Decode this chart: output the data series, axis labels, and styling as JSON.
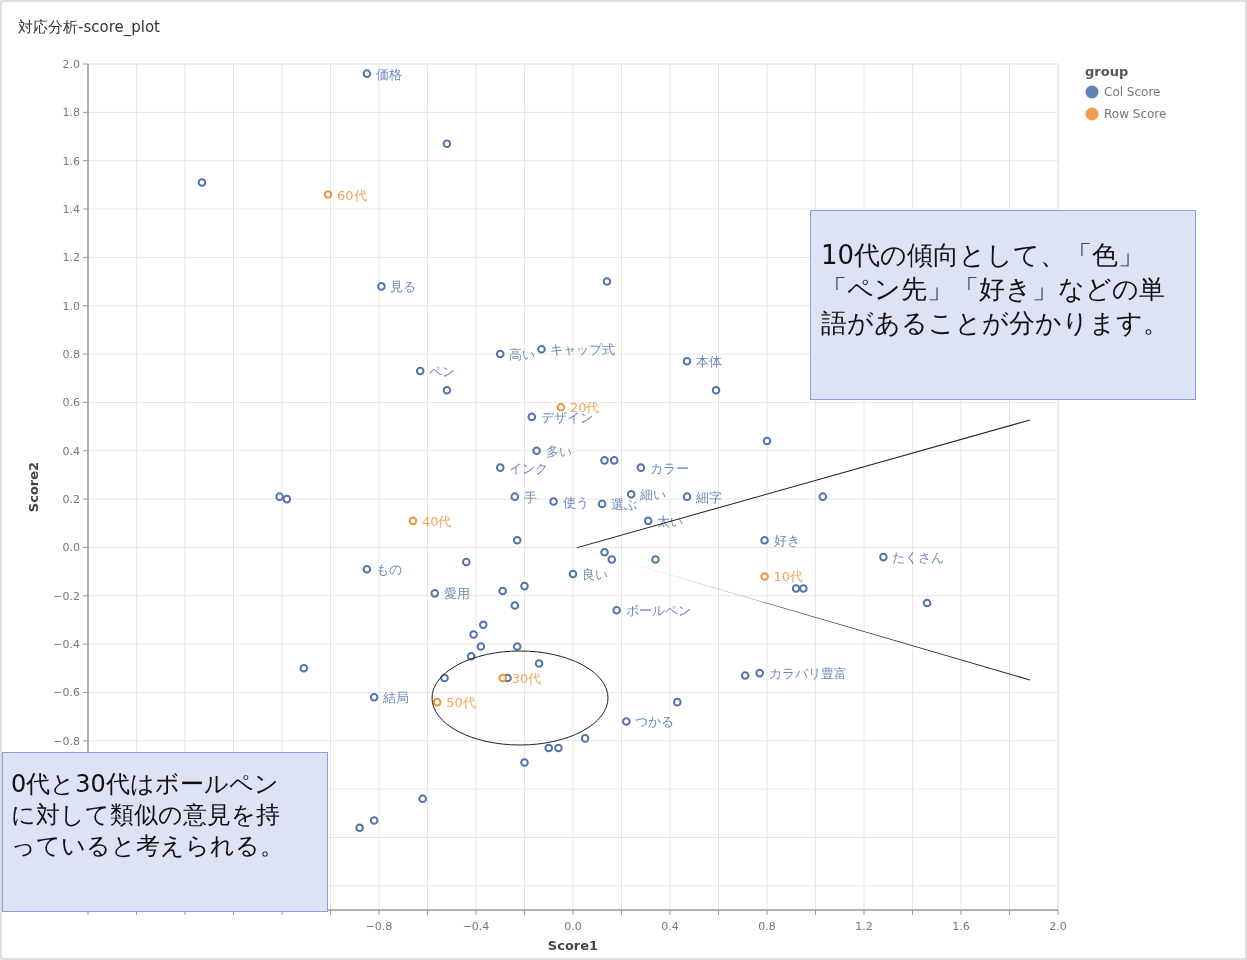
{
  "chart_data": {
    "type": "scatter",
    "title": "対応分析-score_plot",
    "xlabel": "Score1",
    "ylabel": "Score2",
    "legend_title": "group",
    "legend": "top right",
    "marker": "circle",
    "grid": true,
    "xlim": [
      -2.0,
      2.0
    ],
    "ylim": [
      -1.5,
      2.0
    ],
    "xticks": [
      {
        "value": -2.0,
        "label": null
      },
      {
        "value": -1.8,
        "label": null
      },
      {
        "value": -1.6,
        "label": null
      },
      {
        "value": -1.4,
        "label": null
      },
      {
        "value": -1.2,
        "label": null
      },
      {
        "value": -1.0,
        "label": null
      },
      {
        "value": -0.8,
        "label": "−0.8"
      },
      {
        "value": -0.6,
        "label": null
      },
      {
        "value": -0.4,
        "label": "−0.4"
      },
      {
        "value": -0.2,
        "label": null
      },
      {
        "value": 0.0,
        "label": "0.0"
      },
      {
        "value": 0.2,
        "label": null
      },
      {
        "value": 0.4,
        "label": "0.4"
      },
      {
        "value": 0.6,
        "label": null
      },
      {
        "value": 0.8,
        "label": "0.8"
      },
      {
        "value": 1.0,
        "label": null
      },
      {
        "value": 1.2,
        "label": "1.2"
      },
      {
        "value": 1.4,
        "label": null
      },
      {
        "value": 1.6,
        "label": "1.6"
      },
      {
        "value": 1.8,
        "label": null
      },
      {
        "value": 2.0,
        "label": "2.0"
      }
    ],
    "yticks": [
      {
        "value": 2.0,
        "label": "2.0"
      },
      {
        "value": 1.8,
        "label": "1.8"
      },
      {
        "value": 1.6,
        "label": "1.6"
      },
      {
        "value": 1.4,
        "label": "1.4"
      },
      {
        "value": 1.2,
        "label": "1.2"
      },
      {
        "value": 1.0,
        "label": "1.0"
      },
      {
        "value": 0.8,
        "label": "0.8"
      },
      {
        "value": 0.6,
        "label": "0.6"
      },
      {
        "value": 0.4,
        "label": "0.4"
      },
      {
        "value": 0.2,
        "label": "0.2"
      },
      {
        "value": 0.0,
        "label": "0.0"
      },
      {
        "value": -0.2,
        "label": "−0.2"
      },
      {
        "value": -0.4,
        "label": "−0.4"
      },
      {
        "value": -0.6,
        "label": "−0.6"
      },
      {
        "value": -0.8,
        "label": "−0.8"
      },
      {
        "value": -1.0,
        "label": null
      },
      {
        "value": -1.2,
        "label": null
      },
      {
        "value": -1.4,
        "label": null
      }
    ],
    "series": [
      {
        "name": "Col Score",
        "color": "#5174aa",
        "x": [
          -0.85,
          -0.52,
          -1.53,
          -0.79,
          0.14,
          -0.3,
          -0.13,
          0.47,
          -0.63,
          0.59,
          -0.52,
          -0.17,
          -0.15,
          -0.3,
          0.8,
          0.13,
          0.17,
          0.28,
          -0.24,
          -0.08,
          0.12,
          0.24,
          0.47,
          1.03,
          -1.21,
          -1.18,
          0.31,
          -0.23,
          0.79,
          1.28,
          -0.85,
          -0.44,
          0.13,
          0.16,
          0.34,
          0.0,
          -0.57,
          -0.29,
          -0.2,
          -0.24,
          0.18,
          0.92,
          0.95,
          1.46,
          -0.37,
          -0.41,
          -0.38,
          -0.42,
          -0.23,
          -0.14,
          -1.11,
          -0.53,
          -0.27,
          -0.82,
          0.71,
          0.77,
          0.43,
          0.22,
          0.05,
          -0.1,
          -0.06,
          -0.2,
          -0.62,
          -0.82,
          -0.88
        ],
        "values": [
          1.96,
          1.67,
          1.51,
          1.08,
          1.1,
          0.8,
          0.82,
          0.77,
          0.73,
          0.65,
          0.65,
          0.54,
          0.4,
          0.33,
          0.44,
          0.36,
          0.36,
          0.33,
          0.21,
          0.19,
          0.18,
          0.22,
          0.21,
          0.21,
          0.21,
          0.2,
          0.11,
          0.03,
          0.03,
          -0.04,
          -0.09,
          -0.06,
          -0.02,
          -0.05,
          -0.05,
          -0.11,
          -0.19,
          -0.18,
          -0.16,
          -0.24,
          -0.26,
          -0.17,
          -0.17,
          -0.23,
          -0.32,
          -0.36,
          -0.41,
          -0.45,
          -0.41,
          -0.48,
          -0.5,
          -0.54,
          -0.54,
          -0.62,
          -0.53,
          -0.52,
          -0.64,
          -0.72,
          -0.79,
          -0.83,
          -0.83,
          -0.89,
          -1.04,
          -1.13,
          -1.16
        ]
      },
      {
        "name": "Row Score",
        "color": "#f0923a",
        "x": [
          -1.01,
          -0.05,
          -0.66,
          0.79,
          -0.29,
          -0.56
        ],
        "values": [
          1.46,
          0.58,
          0.11,
          -0.12,
          -0.54,
          -0.64
        ]
      }
    ],
    "annotations": [
      {
        "text": "価格",
        "x": -0.85,
        "y": 1.96
      },
      {
        "text": "見る",
        "x": -0.79,
        "y": 1.08
      },
      {
        "text": "高い",
        "x": -0.3,
        "y": 0.8
      },
      {
        "text": "キャップ式",
        "x": -0.13,
        "y": 0.82
      },
      {
        "text": "本体",
        "x": 0.47,
        "y": 0.77
      },
      {
        "text": "ペン",
        "x": -0.63,
        "y": 0.73
      },
      {
        "text": "デザイン",
        "x": -0.17,
        "y": 0.54
      },
      {
        "text": "多い",
        "x": -0.15,
        "y": 0.4
      },
      {
        "text": "インク",
        "x": -0.3,
        "y": 0.33
      },
      {
        "text": "カラー",
        "x": 0.28,
        "y": 0.33
      },
      {
        "text": "手",
        "x": -0.24,
        "y": 0.21
      },
      {
        "text": "使う",
        "x": -0.08,
        "y": 0.19
      },
      {
        "text": "選ぶ",
        "x": 0.12,
        "y": 0.18
      },
      {
        "text": "細い",
        "x": 0.24,
        "y": 0.22
      },
      {
        "text": "細字",
        "x": 0.47,
        "y": 0.21
      },
      {
        "text": "太い",
        "x": 0.31,
        "y": 0.11
      },
      {
        "text": "好き",
        "x": 0.79,
        "y": 0.03
      },
      {
        "text": "たくさん",
        "x": 1.28,
        "y": -0.04
      },
      {
        "text": "もの",
        "x": -0.85,
        "y": -0.09
      },
      {
        "text": "良い",
        "x": 0.0,
        "y": -0.11
      },
      {
        "text": "愛用",
        "x": -0.57,
        "y": -0.19
      },
      {
        "text": "ボールペン",
        "x": 0.18,
        "y": -0.26
      },
      {
        "text": "結局",
        "x": -0.82,
        "y": -0.62
      },
      {
        "text": "カラバリ豊富",
        "x": 0.77,
        "y": -0.52
      },
      {
        "text": "つかる",
        "x": 0.22,
        "y": -0.72
      },
      {
        "text": "60代",
        "x": -1.01,
        "y": 1.46
      },
      {
        "text": "20代",
        "x": -0.05,
        "y": 0.58
      },
      {
        "text": "40代",
        "x": -0.66,
        "y": 0.11
      },
      {
        "text": "10代",
        "x": 0.79,
        "y": -0.12
      },
      {
        "text": "30代",
        "x": -0.29,
        "y": -0.54
      },
      {
        "text": "50代",
        "x": -0.56,
        "y": -0.64
      },
      "10代の傾向として、「色」「ペン先」「好き」などの単語があることが分かります。",
      "0代と30代はボールペンに対して類似の意見を持っていると考えられる。"
    ]
  }
}
